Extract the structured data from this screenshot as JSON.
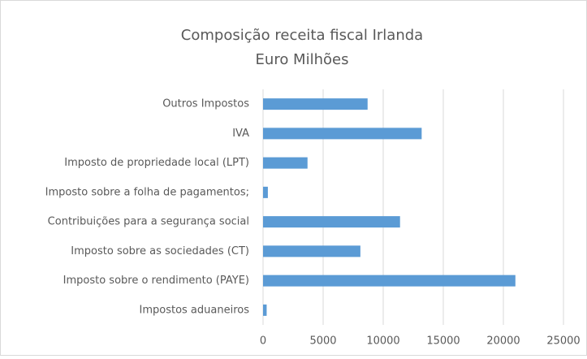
{
  "chart_data": {
    "type": "barh",
    "title": "Composição receita fiscal Irlanda",
    "subtitle": "Euro Milhões",
    "categories": [
      "Outros Impostos",
      "IVA",
      "Imposto de propriedade local (LPT)",
      "Imposto sobre a folha de pagamentos;",
      "Contribuições para a segurança social",
      "Imposto sobre as sociedades (CT)",
      "Imposto sobre o rendimento (PAYE)",
      "Impostos aduaneiros"
    ],
    "values": [
      8700,
      13200,
      3700,
      400,
      11400,
      8100,
      21000,
      300
    ],
    "color": "#5b9bd5",
    "xlim": [
      0,
      25000
    ],
    "xticks": [
      0,
      5000,
      10000,
      15000,
      20000,
      25000
    ],
    "grid": true
  }
}
